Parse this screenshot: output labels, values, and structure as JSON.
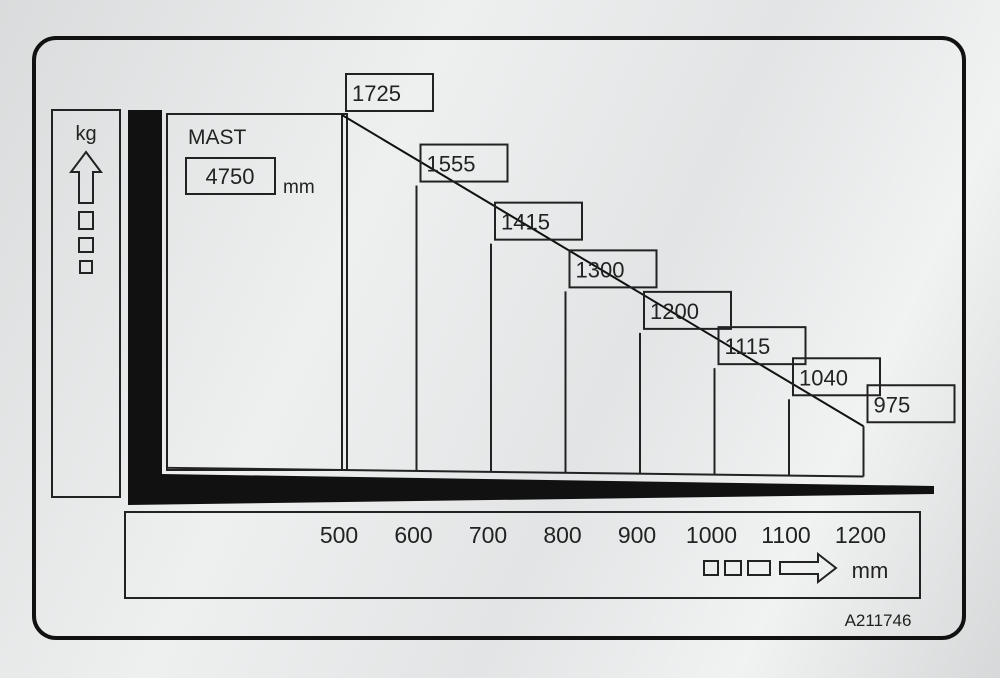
{
  "chart_data": {
    "type": "line",
    "title": "",
    "y_unit": "kg",
    "x_unit": "mm",
    "mast_label": "MAST",
    "mast_height": "4750",
    "mast_unit": "mm",
    "x": [
      500,
      600,
      700,
      800,
      900,
      1000,
      1100,
      1200
    ],
    "x_tick_labels": [
      "500",
      "600",
      "700",
      "800",
      "900",
      "1000",
      "1100",
      "1200"
    ],
    "series": [
      {
        "values": [
          1725,
          1555,
          1415,
          1300,
          1200,
          1115,
          1040,
          975
        ],
        "value_labels": [
          "1725",
          "1555",
          "1415",
          "1300",
          "1200",
          "1115",
          "1040",
          "975"
        ]
      }
    ],
    "part_number": "A211746"
  },
  "icons": {
    "kg_arrow": "arrow-up-icon",
    "mm_arrow": "arrow-right-icon"
  }
}
